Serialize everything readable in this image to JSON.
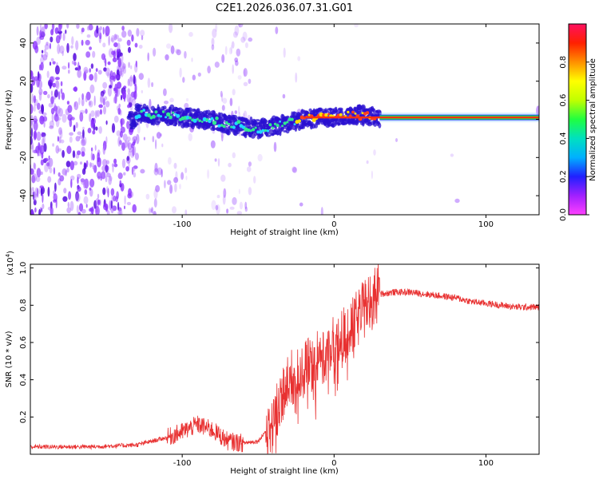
{
  "figure": {
    "title": "C2E1.2026.036.07.31.G01"
  },
  "colors": {
    "snr_line": "#e83030",
    "spectrogram_scatter": "#7a2cff",
    "axis": "#000000"
  },
  "chart_data": [
    {
      "type": "heatmap",
      "name": "spectrogram",
      "title": "C2E1.2026.036.07.31.G01",
      "xlabel": "Height of straight line (km)",
      "ylabel": "Frequency (Hz)",
      "xlim": [
        -200,
        135
      ],
      "ylim": [
        -50,
        50
      ],
      "xticks": [
        -100,
        0,
        100
      ],
      "yticks": [
        -40,
        -20,
        0,
        20,
        40
      ],
      "center_track": [
        {
          "x": -130,
          "y": 3
        },
        {
          "x": -110,
          "y": 2
        },
        {
          "x": -95,
          "y": 1
        },
        {
          "x": -80,
          "y": -1
        },
        {
          "x": -65,
          "y": -3
        },
        {
          "x": -50,
          "y": -5
        },
        {
          "x": -40,
          "y": -4
        },
        {
          "x": -30,
          "y": -2
        },
        {
          "x": -20,
          "y": 0
        },
        {
          "x": -10,
          "y": 1
        },
        {
          "x": 0,
          "y": 1
        },
        {
          "x": 10,
          "y": 2
        },
        {
          "x": 20,
          "y": 2
        },
        {
          "x": 30,
          "y": 1
        },
        {
          "x": 135,
          "y": 1
        }
      ],
      "colorbar": {
        "label": "Normalized spectral amplitude",
        "range": [
          0,
          1
        ],
        "ticks": [
          "0.0",
          "0.2",
          "0.4",
          "0.6",
          "0.8"
        ],
        "stops": [
          "#ff40ff",
          "#a020ff",
          "#2020ff",
          "#00b0ff",
          "#00e0c0",
          "#20ff40",
          "#c0ff00",
          "#ffff00",
          "#ff9000",
          "#ff2000",
          "#ff1060"
        ]
      }
    },
    {
      "type": "line",
      "name": "snr",
      "xlabel": "Height of straight line (km)",
      "ylabel": "SNR (10 * v/v)",
      "yscale_label": "(x10",
      "yscale_exponent": "4",
      "yscale_suffix": ")",
      "xlim": [
        -200,
        135
      ],
      "ylim": [
        0,
        1.02
      ],
      "xticks": [
        -100,
        0,
        100
      ],
      "yticks": [
        "0.2",
        "0.4",
        "0.6",
        "0.8",
        "1.0"
      ],
      "series": [
        {
          "name": "SNR",
          "envelope": [
            {
              "x": -200,
              "y": 0.04
            },
            {
              "x": -160,
              "y": 0.04
            },
            {
              "x": -130,
              "y": 0.05
            },
            {
              "x": -110,
              "y": 0.09
            },
            {
              "x": -100,
              "y": 0.12
            },
            {
              "x": -90,
              "y": 0.16
            },
            {
              "x": -80,
              "y": 0.13
            },
            {
              "x": -70,
              "y": 0.07
            },
            {
              "x": -60,
              "y": 0.06
            },
            {
              "x": -50,
              "y": 0.07
            },
            {
              "x": -40,
              "y": 0.18
            },
            {
              "x": -35,
              "y": 0.32
            },
            {
              "x": -28,
              "y": 0.4
            },
            {
              "x": -20,
              "y": 0.45
            },
            {
              "x": -10,
              "y": 0.52
            },
            {
              "x": 0,
              "y": 0.58
            },
            {
              "x": 10,
              "y": 0.66
            },
            {
              "x": 20,
              "y": 0.78
            },
            {
              "x": 30,
              "y": 0.86
            },
            {
              "x": 40,
              "y": 0.87
            },
            {
              "x": 50,
              "y": 0.87
            },
            {
              "x": 60,
              "y": 0.86
            },
            {
              "x": 70,
              "y": 0.85
            },
            {
              "x": 80,
              "y": 0.84
            },
            {
              "x": 90,
              "y": 0.82
            },
            {
              "x": 100,
              "y": 0.81
            },
            {
              "x": 110,
              "y": 0.8
            },
            {
              "x": 120,
              "y": 0.79
            },
            {
              "x": 135,
              "y": 0.79
            }
          ]
        }
      ]
    }
  ]
}
